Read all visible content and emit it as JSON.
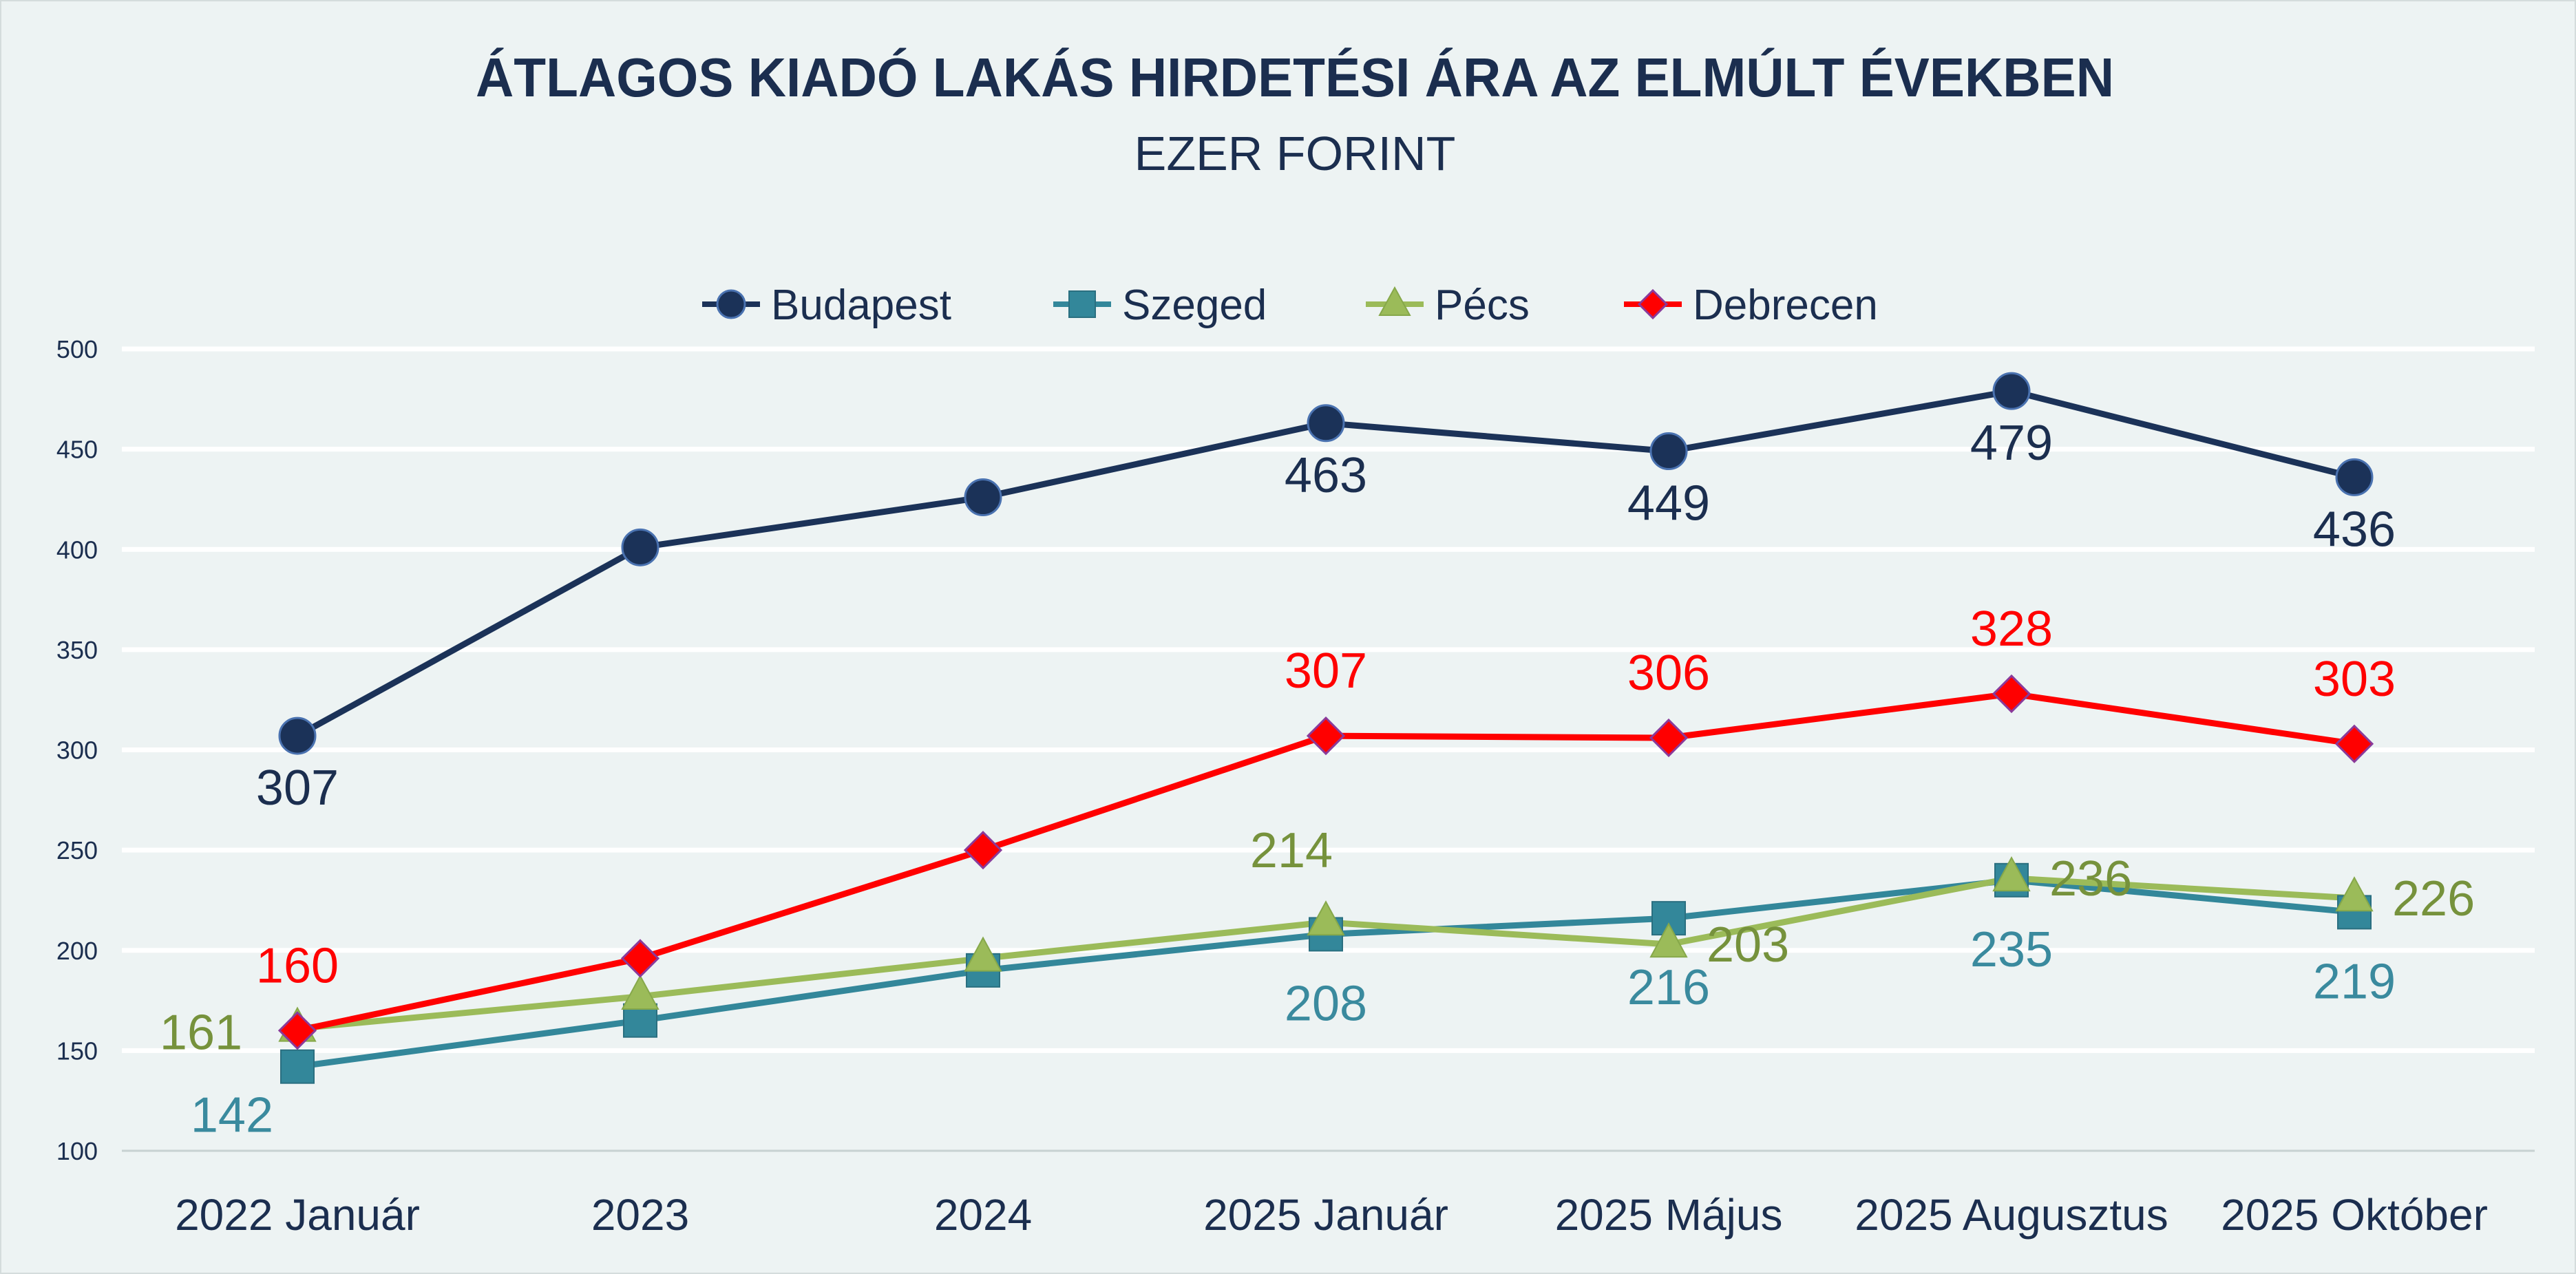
{
  "chart_data": {
    "type": "line",
    "title": "ÁTLAGOS  KIADÓ LAKÁS HIRDETÉSI ÁRA AZ ELMÚLT ÉVEKBEN",
    "subtitle": "EZER FORINT",
    "xlabel": "",
    "ylabel": "",
    "categories": [
      "2022 Január",
      "2023",
      "2024",
      "2025 Január",
      "2025 Május",
      "2025 Augusztus",
      "2025 Október"
    ],
    "ylim": [
      100,
      500
    ],
    "yticks": [
      100,
      150,
      200,
      250,
      300,
      350,
      400,
      450,
      500
    ],
    "grid": true,
    "legend_position": "top-center",
    "series": [
      {
        "name": "Budapest",
        "color": "#1b3258",
        "marker": "circle",
        "values": [
          307,
          401,
          426,
          463,
          449,
          479,
          436
        ],
        "labels": [
          "307",
          null,
          null,
          "463",
          "449",
          "479",
          "436"
        ],
        "label_position": "below",
        "label_color": "#1b2e4f"
      },
      {
        "name": "Szeged",
        "color": "#33879a",
        "marker": "square",
        "values": [
          142,
          165,
          190,
          208,
          216,
          235,
          219
        ],
        "labels": [
          "142",
          null,
          null,
          "208",
          "216",
          "235",
          "219"
        ],
        "label_position": "below",
        "label_color": "#3a8a9e"
      },
      {
        "name": "Pécs",
        "color": "#9bbb59",
        "marker": "triangle",
        "values": [
          161,
          177,
          196,
          214,
          203,
          236,
          226
        ],
        "labels": [
          "161",
          null,
          null,
          "214",
          "203",
          "236",
          "226"
        ],
        "label_position": "mixed",
        "label_color": "#76923c"
      },
      {
        "name": "Debrecen",
        "color": "#ff0000",
        "marker": "diamond",
        "values": [
          160,
          196,
          250,
          307,
          306,
          328,
          303
        ],
        "labels": [
          "160",
          null,
          null,
          "307",
          "306",
          "328",
          "303"
        ],
        "label_position": "above",
        "label_color": "#ff0000"
      }
    ]
  }
}
